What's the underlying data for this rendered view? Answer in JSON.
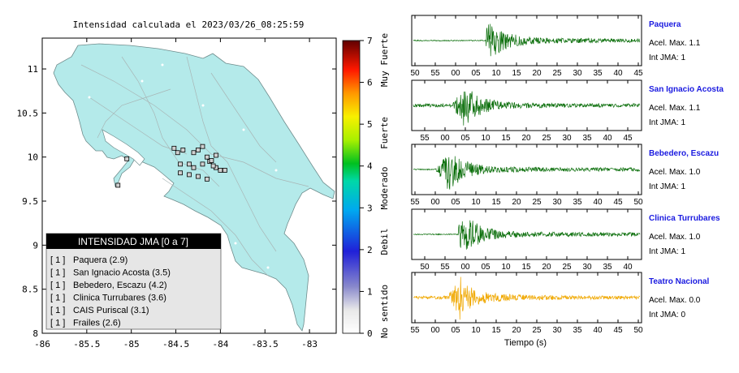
{
  "map": {
    "title": "Intensidad calculada el 2023/03/26_08:25:59",
    "x_ticks": [
      "-86",
      "-85.5",
      "-85",
      "-84.5",
      "-84",
      "-83.5",
      "-83"
    ],
    "y_ticks": [
      "11",
      "10.5",
      "10",
      "9.5",
      "9",
      "8.5",
      "8"
    ]
  },
  "colorbar": {
    "ticks": [
      "0",
      "1",
      "2",
      "3",
      "4",
      "5",
      "6",
      "7"
    ],
    "labels": [
      "No sentido",
      "Debil",
      "Moderado",
      "Fuerte",
      "Muy Fuerte"
    ]
  },
  "legend": {
    "title": "INTENSIDAD JMA [0 a 7]",
    "items": [
      {
        "level": "[ 1 ]",
        "station": "Paquera (2.9)"
      },
      {
        "level": "[ 1 ]",
        "station": "San Ignacio Acosta (3.5)"
      },
      {
        "level": "[ 1 ]",
        "station": "Bebedero, Escazu (4.2)"
      },
      {
        "level": "[ 1 ]",
        "station": "Clinica Turrubares (3.6)"
      },
      {
        "level": "[ 1 ]",
        "station": "CAIS Puriscal (3.1)"
      },
      {
        "level": "[ 1 ]",
        "station": "Frailes (2.6)"
      }
    ]
  },
  "waveforms": {
    "xlabel": "Tiempo (s)",
    "panels": [
      {
        "station": "Paquera",
        "accel": "Acel. Max. 1.1",
        "intensity": "Int JMA: 1",
        "ticks": [
          "50",
          "55",
          "00",
          "05",
          "10",
          "15",
          "20",
          "25",
          "30",
          "35",
          "40",
          "45"
        ],
        "color": "#0a6e0a",
        "onset": 0.32,
        "peak": 0.33
      },
      {
        "station": "San Ignacio Acosta",
        "accel": "Acel. Max. 1.1",
        "intensity": "Int JMA: 1",
        "ticks": [
          "55",
          "00",
          "05",
          "10",
          "15",
          "20",
          "25",
          "30",
          "35",
          "40",
          "45",
          "50"
        ],
        "color": "#0a6e0a",
        "onset": 0.0,
        "peak": 0.22
      },
      {
        "station": "Bebedero, Escazu",
        "accel": "Acel. Max. 1.0",
        "intensity": "Int JMA: 1",
        "ticks": [
          "55",
          "00",
          "05",
          "10",
          "15",
          "20",
          "25",
          "30",
          "35",
          "40",
          "45",
          "50"
        ],
        "color": "#0a6e0a",
        "onset": 0.1,
        "peak": 0.15
      },
      {
        "station": "Clinica Turrubares",
        "accel": "Acel. Max. 1.0",
        "intensity": "Int JMA: 1",
        "ticks": [
          "50",
          "55",
          "00",
          "05",
          "10",
          "15",
          "20",
          "25",
          "30",
          "35",
          "40",
          "45"
        ],
        "color": "#0a6e0a",
        "onset": 0.2,
        "peak": 0.22
      },
      {
        "station": "Teatro Nacional",
        "accel": "Acel. Max. 0.0",
        "intensity": "Int JMA: 0",
        "ticks": [
          "55",
          "00",
          "05",
          "10",
          "15",
          "20",
          "25",
          "30",
          "35",
          "40",
          "45",
          "50"
        ],
        "color": "#f0a800",
        "onset": 0.0,
        "peak": 0.2
      }
    ]
  },
  "chart_data": [
    {
      "type": "scatter",
      "title": "Intensidad calculada el 2023/03/26_08:25:59",
      "xlabel": "",
      "ylabel": "",
      "xlim": [
        -86,
        -82.7
      ],
      "ylim": [
        8,
        11.35
      ],
      "series": [
        {
          "name": "",
          "x": [
            -85.05,
            -84.52,
            -84.48,
            -84.45,
            -84.42,
            -84.35,
            -84.3,
            -84.25,
            -84.2,
            -84.15,
            -84.12,
            -84.05,
            -84.0,
            -84.45,
            -84.3,
            -84.2,
            -84.1,
            -84.05,
            -83.95,
            -84.35,
            -84.25,
            -84.15,
            -84.08,
            -85.15
          ],
          "y": [
            9.98,
            10.1,
            10.05,
            9.92,
            10.08,
            9.92,
            10.05,
            10.08,
            10.12,
            10.0,
            9.95,
            9.88,
            9.85,
            9.82,
            9.88,
            9.92,
            9.96,
            10.02,
            9.85,
            9.8,
            9.78,
            9.75,
            9.9,
            9.68
          ]
        }
      ]
    },
    {
      "type": "line",
      "title": "",
      "xlabel": "Tiempo (s)",
      "series": [
        {
          "name": "Paquera",
          "values": [
            1.1
          ]
        },
        {
          "name": "San Ignacio Acosta",
          "values": [
            1.1
          ]
        },
        {
          "name": "Bebedero, Escazu",
          "values": [
            1.0
          ]
        },
        {
          "name": "Clinica Turrubares",
          "values": [
            1.0
          ]
        },
        {
          "name": "Teatro Nacional",
          "values": [
            0.0
          ]
        }
      ]
    }
  ]
}
